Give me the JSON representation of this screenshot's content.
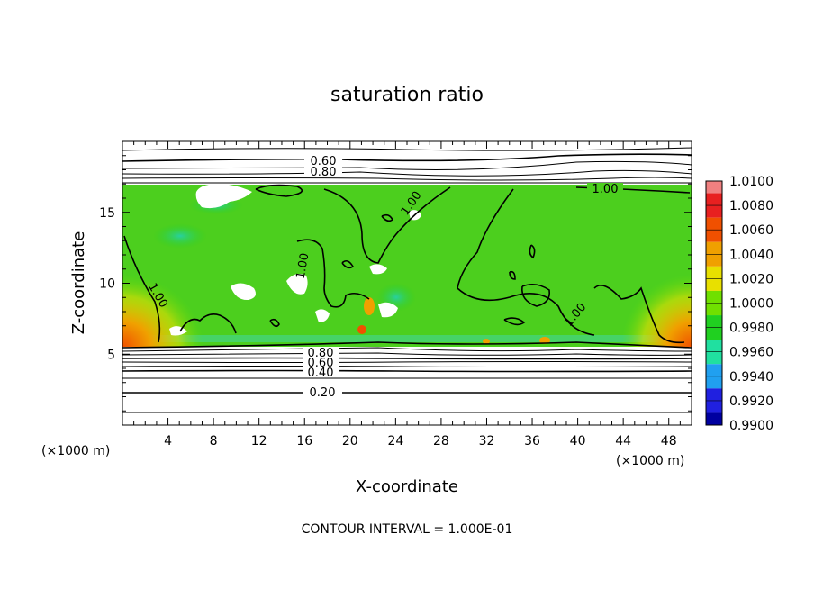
{
  "chart_data": {
    "type": "heatmap",
    "title": "saturation ratio",
    "xlabel": "X-coordinate",
    "ylabel": "Z-coordinate",
    "x_unit": "(×1000 m)",
    "z_unit": "(×1000 m)",
    "xlim": [
      0,
      50
    ],
    "ylim": [
      0,
      20
    ],
    "x_ticks": [
      4,
      8,
      12,
      16,
      20,
      24,
      28,
      32,
      36,
      40,
      44,
      48
    ],
    "y_ticks": [
      5,
      10,
      15
    ],
    "footer": "CONTOUR INTERVAL = 1.000E-01",
    "contour_labels": [
      "0.60",
      "0.80",
      "1.00",
      "1.00",
      "1.00",
      "1.00",
      "1.00",
      "0.80",
      "0.60",
      "0.40",
      "0.20"
    ],
    "colorbar": {
      "levels": [
        "1.0100",
        "1.0080",
        "1.0060",
        "1.0040",
        "1.0020",
        "1.0000",
        "0.9980",
        "0.9960",
        "0.9940",
        "0.9920",
        "0.9900"
      ],
      "colors": [
        "#f08080",
        "#e82020",
        "#f05000",
        "#f0a000",
        "#e8e000",
        "#70e000",
        "#20d020",
        "#20e0a0",
        "#20a0f0",
        "#2020e0",
        "#0000a0",
        "#6000b0"
      ]
    },
    "field": {
      "cloud_base_km": 5.5,
      "cloud_top_km": 16.7,
      "dominant_value": 1.0
    }
  }
}
